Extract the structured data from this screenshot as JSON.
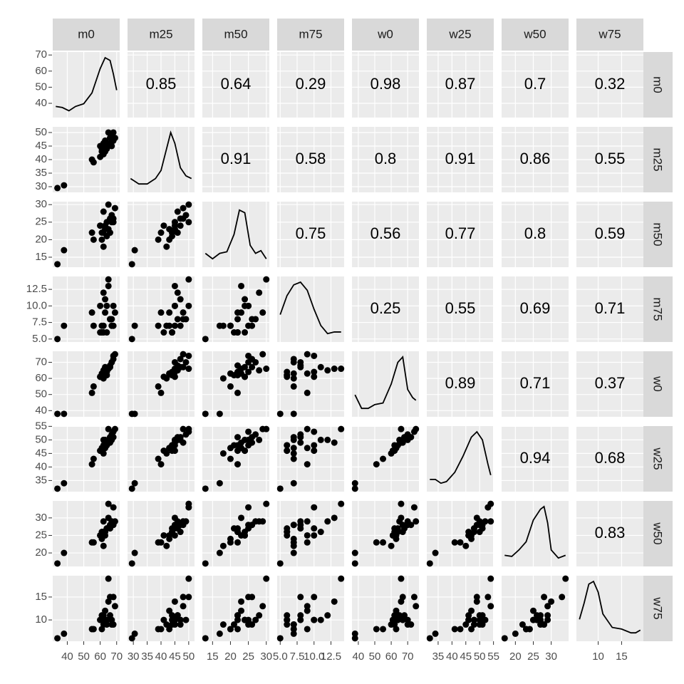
{
  "chart_data": {
    "type": "scatter_matrix",
    "variables": [
      {
        "name": "m0",
        "lim": [
          33,
          70
        ],
        "ticks": [
          40,
          50,
          60,
          70
        ],
        "values": [
          34,
          38,
          55,
          56,
          60,
          61,
          62,
          63,
          64,
          65,
          66,
          60,
          62,
          67,
          68,
          69,
          64,
          65,
          63,
          66,
          61,
          68,
          67,
          62
        ],
        "density": {
          "x": [
            33,
            37,
            41,
            45,
            50,
            55,
            60,
            63,
            66,
            68,
            70
          ],
          "y": [
            0.1,
            0.08,
            0.02,
            0.1,
            0.15,
            0.35,
            0.8,
            1.0,
            0.95,
            0.7,
            0.4
          ]
        }
      },
      {
        "name": "m25",
        "lim": [
          29,
          51
        ],
        "ticks": [
          30,
          35,
          40,
          45,
          50
        ],
        "values": [
          29.5,
          30.5,
          40,
          39,
          45,
          44,
          42,
          43,
          45,
          50,
          48,
          41,
          46,
          49,
          47,
          48,
          44,
          45,
          47,
          46,
          43,
          50,
          45,
          44
        ],
        "density": {
          "x": [
            29,
            32,
            35,
            38,
            40,
            42,
            43.5,
            45,
            47,
            49,
            51
          ],
          "y": [
            0.15,
            0.05,
            0.05,
            0.15,
            0.3,
            0.7,
            1.0,
            0.8,
            0.35,
            0.2,
            0.15
          ]
        }
      },
      {
        "name": "m50",
        "lim": [
          13,
          30
        ],
        "ticks": [
          15,
          20,
          25,
          30
        ],
        "values": [
          13,
          17,
          22,
          20,
          24,
          22,
          18,
          23,
          25,
          30,
          26,
          24,
          28,
          27,
          26,
          29,
          21,
          23,
          24,
          22,
          20,
          25,
          25,
          22
        ],
        "density": {
          "x": [
            13,
            15,
            17,
            19,
            21,
            22.5,
            24,
            25.5,
            27,
            28.5,
            30
          ],
          "y": [
            0.15,
            0.05,
            0.15,
            0.18,
            0.5,
            0.95,
            0.9,
            0.3,
            0.15,
            0.2,
            0.05
          ]
        }
      },
      {
        "name": "m75",
        "lim": [
          5,
          14
        ],
        "ticks": [
          {
            "value": 5,
            "label": "5.0"
          },
          7.5,
          {
            "value": 10,
            "label": "10.0"
          },
          12.5
        ],
        "values": [
          5,
          7,
          9,
          7,
          10,
          6,
          7,
          9,
          10,
          14,
          8,
          6,
          12,
          8,
          7,
          9,
          6,
          13,
          11,
          8,
          7,
          10,
          7,
          6
        ],
        "density": {
          "x": [
            5,
            6,
            7,
            8,
            9,
            10,
            11,
            12,
            13,
            14
          ],
          "y": [
            0.4,
            0.75,
            0.95,
            1.0,
            0.85,
            0.5,
            0.2,
            0.05,
            0.08,
            0.08
          ]
        }
      },
      {
        "name": "w0",
        "lim": [
          38,
          75
        ],
        "ticks": [
          40,
          50,
          60,
          70
        ],
        "values": [
          38,
          38,
          51,
          55,
          61,
          62,
          60,
          63,
          64,
          66,
          67,
          61,
          65,
          70,
          72,
          75,
          62,
          66,
          67,
          68,
          63,
          74,
          70,
          64
        ],
        "density": {
          "x": [
            38,
            42,
            46,
            50,
            55,
            60,
            64,
            67,
            70,
            73,
            75
          ],
          "y": [
            0.3,
            0.05,
            0.05,
            0.12,
            0.15,
            0.5,
            0.9,
            1.0,
            0.4,
            0.25,
            0.2
          ]
        }
      },
      {
        "name": "w25",
        "lim": [
          32,
          54
        ],
        "ticks": [
          35,
          40,
          45,
          50,
          55
        ],
        "values": [
          32,
          34,
          41,
          43,
          46,
          46,
          45,
          47,
          48,
          54,
          49,
          46,
          50,
          52,
          51,
          54,
          48,
          49,
          50,
          51,
          47,
          53,
          50,
          48
        ],
        "density": {
          "x": [
            32,
            34,
            36,
            38,
            41,
            44,
            47,
            49,
            51,
            53,
            54
          ],
          "y": [
            0.12,
            0.12,
            0.05,
            0.08,
            0.25,
            0.55,
            0.9,
            1.0,
            0.85,
            0.4,
            0.2
          ]
        }
      },
      {
        "name": "w50",
        "lim": [
          17,
          34
        ],
        "ticks": [
          20,
          25,
          30
        ],
        "values": [
          17,
          20,
          23,
          23,
          25,
          26,
          22,
          25,
          27,
          34,
          28,
          25,
          29,
          29,
          28,
          29,
          27,
          30,
          26,
          27,
          24,
          33,
          28,
          26
        ],
        "density": {
          "x": [
            17,
            19,
            21,
            23,
            25,
            27,
            28,
            29,
            30,
            32,
            34
          ],
          "y": [
            0.1,
            0.08,
            0.2,
            0.35,
            0.75,
            0.95,
            1.0,
            0.7,
            0.2,
            0.05,
            0.1
          ]
        }
      },
      {
        "name": "w75",
        "lim": [
          6,
          19
        ],
        "ticks": [
          10,
          15
        ],
        "values": [
          6,
          7,
          8,
          8,
          10,
          11,
          9,
          12,
          10,
          19,
          15,
          10,
          11,
          10,
          9,
          13,
          9,
          14,
          10,
          11,
          8,
          15,
          9,
          10
        ],
        "density": {
          "x": [
            6,
            7,
            8,
            9,
            10,
            11,
            13,
            15,
            17,
            18,
            19
          ],
          "y": [
            0.3,
            0.6,
            0.95,
            1.0,
            0.8,
            0.4,
            0.15,
            0.12,
            0.05,
            0.05,
            0.1
          ]
        }
      }
    ],
    "correlations": [
      [
        0.85,
        0.64,
        0.29,
        0.98,
        0.87,
        0.7,
        0.32
      ],
      [
        0.91,
        0.58,
        0.8,
        0.91,
        0.86,
        0.55
      ],
      [
        0.75,
        0.56,
        0.77,
        0.8,
        0.59
      ],
      [
        0.25,
        0.55,
        0.69,
        0.71
      ],
      [
        0.89,
        0.71,
        0.37
      ],
      [
        0.94,
        0.68
      ],
      [
        0.83
      ]
    ]
  }
}
